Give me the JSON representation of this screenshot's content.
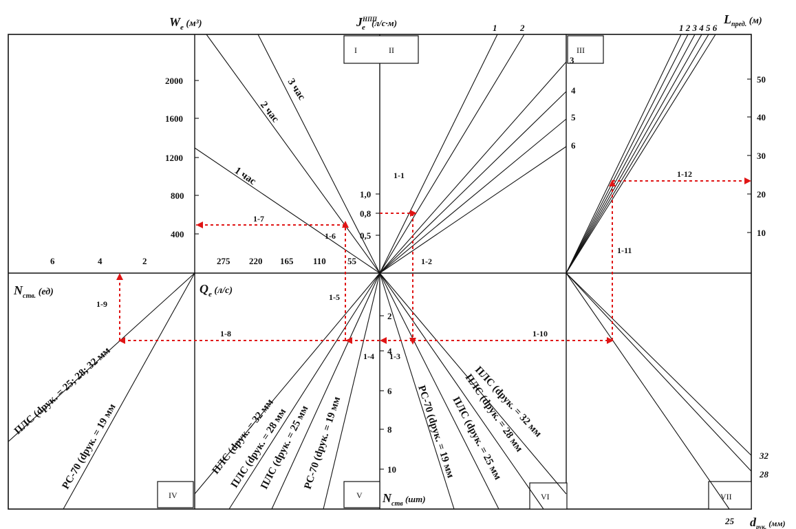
{
  "axis_titles": {
    "w_top": "W",
    "w_sub": "е",
    "w_unit": " (м³)",
    "j_top": "J",
    "j_sup": "НПП",
    "j_sub": "е",
    "j_unit": " (л/с·м)",
    "l_top": "L",
    "l_sub": "пред.",
    "l_unit": " (м)",
    "q_left": "Q",
    "q_sub": "е",
    "q_unit": " (л/с)",
    "n_stv_left": "N",
    "n_stv_sub": "ств.",
    "n_stv_unit": " (ед)",
    "n_stv_bottom": "N",
    "n_stv_bottom_sub": "ств",
    "n_stv_bottom_unit": " (шт)",
    "d_bottom": "d",
    "d_bottom_sub": "рук.",
    "d_bottom_unit": " (мм)"
  },
  "quadrants": [
    "I",
    "II",
    "III",
    "IV",
    "V",
    "VI",
    "VII"
  ],
  "ticks": {
    "w": [
      "2000",
      "1600",
      "1200",
      "800",
      "400"
    ],
    "q": [
      "275",
      "220",
      "165",
      "110",
      "55"
    ],
    "n_left": [
      "6",
      "4",
      "2"
    ],
    "j": [
      "1,0",
      "0,8",
      "0,5"
    ],
    "n_bottom": [
      "2",
      "4",
      "6",
      "8",
      "10"
    ],
    "l": [
      "50",
      "40",
      "30",
      "20",
      "10"
    ],
    "d_right": [
      "32",
      "28",
      "25"
    ]
  },
  "curve_labels": {
    "hours": [
      "1 час",
      "2 час",
      "3 час"
    ],
    "top_right_nums": [
      "1",
      "2"
    ],
    "iii_nums": [
      "3",
      "4",
      "5",
      "6"
    ],
    "iii_top_nums": "1 2 3 4 5 6",
    "hose_iv": [
      "ПЛС (dрук. = 25; 28; 32 мм",
      "РС-70 (dрук. = 19 мм"
    ],
    "hose_v": [
      "ПЛС (dрук. = 32 мм",
      "ПЛС (dрук. = 28 мм",
      "ПЛС (dрук. = 25 мм",
      "РС-70 (dрук. = 19 мм"
    ],
    "hose_vi": [
      "РС-70 (dрук. = 19 мм",
      "ПЛС (dрук. = 25 мм",
      "ПЛС (dрук. = 28 мм",
      "ПЛС (dрук. = 32 мм"
    ]
  },
  "steps": [
    "1-1",
    "1-2",
    "1-3",
    "1-4",
    "1-5",
    "1-6",
    "1-7",
    "1-8",
    "1-9",
    "1-10",
    "1-11",
    "1-12"
  ],
  "colors": {
    "line": "#111111",
    "path": "#e01515",
    "background": "#ffffff"
  }
}
